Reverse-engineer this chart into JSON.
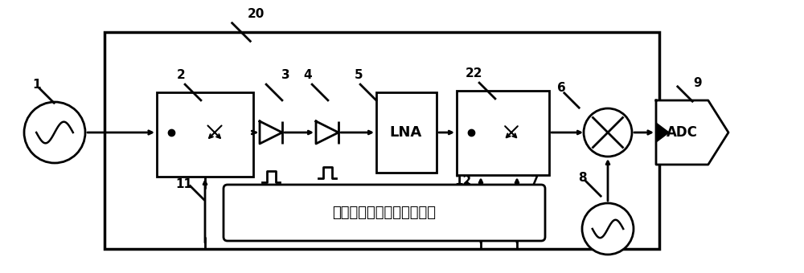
{
  "bg_color": "#ffffff",
  "line_color": "#000000",
  "lw": 2.0,
  "fig_w": 10.0,
  "fig_h": 3.4,
  "text_chinese": "多路脉冲基带信号产生模块",
  "adc_label": "ADC",
  "lna_label": "LNA"
}
